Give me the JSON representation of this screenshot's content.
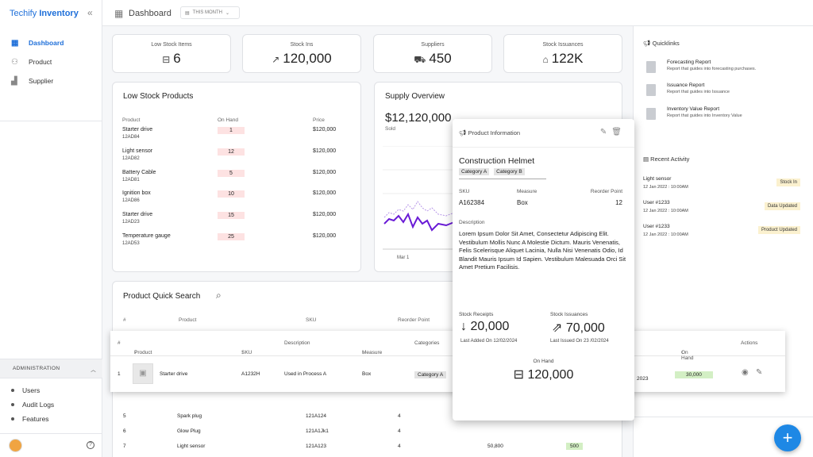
{
  "app": {
    "logo_brand": "Techify",
    "logo_product": "Inventory"
  },
  "sidebar": {
    "nav": [
      {
        "label": "Dashboard",
        "icon": "grid-icon",
        "active": true
      },
      {
        "label": "Product",
        "icon": "users-icon",
        "active": false
      },
      {
        "label": "Supplier",
        "icon": "chart-icon",
        "active": false
      }
    ],
    "admin_title": "ADMINISTRATION",
    "admin_items": [
      "Users",
      "Audit Logs",
      "Features"
    ]
  },
  "topbar": {
    "title": "Dashboard",
    "period": "THIS MONTH"
  },
  "stats": [
    {
      "label": "Low Stock Items",
      "value": "6",
      "icon": "minus-box-icon"
    },
    {
      "label": "Stock Ins",
      "value": "120,000",
      "icon": "trend-up-icon"
    },
    {
      "label": "Suppliers",
      "value": "450",
      "icon": "truck-icon"
    },
    {
      "label": "Stock Issuances",
      "value": "122K",
      "icon": "home-icon"
    }
  ],
  "low_stock": {
    "title": "Low Stock Products",
    "headers": [
      "Product",
      "On Hand",
      "Price"
    ],
    "rows": [
      {
        "name": "Starter drive",
        "sku": "12AD84",
        "on_hand": "1",
        "price": "$120,000"
      },
      {
        "name": "Light sensor",
        "sku": "12AD82",
        "on_hand": "12",
        "price": "$120,000"
      },
      {
        "name": "Battery Cable",
        "sku": "12AD81",
        "on_hand": "5",
        "price": "$120,000"
      },
      {
        "name": "Ignition box",
        "sku": "12AD86",
        "on_hand": "10",
        "price": "$120,000"
      },
      {
        "name": "Starter drive",
        "sku": "12AD23",
        "on_hand": "15",
        "price": "$120,000"
      },
      {
        "name": "Temperature gauge",
        "sku": "12AD53",
        "on_hand": "25",
        "price": "$120,000"
      }
    ]
  },
  "supply": {
    "title": "Supply Overview",
    "value": "$12,120,000",
    "sub": "Sold",
    "x_label": "Mar 1"
  },
  "quick_search": {
    "title": "Product Quick Search",
    "headers": [
      "#",
      "Product",
      "SKU",
      "Reorder Point"
    ],
    "rows": [
      {
        "n": "5",
        "name": "Spark plug",
        "sku": "121A124",
        "reorder": "4",
        "extra": "",
        "badge": ""
      },
      {
        "n": "6",
        "name": "Glow Plug",
        "sku": "121A1Jk1",
        "reorder": "4",
        "extra": "",
        "badge": ""
      },
      {
        "n": "7",
        "name": "Light sensor",
        "sku": "121A123",
        "reorder": "4",
        "extra": "50,800",
        "badge": "500"
      }
    ]
  },
  "overlay_table": {
    "headers": {
      "num": "#",
      "product": "Product",
      "sku": "SKU",
      "description": "Description",
      "measure": "Measure",
      "categories": "Categories",
      "on_hand": "On Hand",
      "actions": "Actions"
    },
    "row": {
      "num": "1",
      "product": "Starter drive",
      "sku": "A1232H",
      "description": "Used in Process A",
      "measure": "Box",
      "category": "Category A",
      "date": "2023",
      "on_hand": "30,000"
    }
  },
  "modal": {
    "header": "Product Information",
    "name": "Construction Helmet",
    "categories": [
      "Category A",
      "Category B"
    ],
    "sku_label": "SKU",
    "sku": "A162384",
    "measure_label": "Measure",
    "measure": "Box",
    "reorder_label": "Reorder Point",
    "reorder": "12",
    "desc_label": "Description",
    "description": "Lorem Ipsum Dolor Sit Amet, Consectetur Adipiscing Elit. Vestibulum Mollis Nunc A Molestie Dictum. Mauris Venenatis, Felis Scelerisque Aliquet Lacinia, Nulla Nisi Venenatis Odio, Id Blandit Mauris Ipsum Id Sapien. Vestibulum Malesuada Orci Sit Amet Pretium Facilisis.",
    "receipts_label": "Stock Receipts",
    "receipts": "20,000",
    "receipts_sub": "Last Added On 12/02/2024",
    "issuances_label": "Stock Issuances",
    "issuances": "70,000",
    "issuances_sub": "Last Issued On 23 /02/2024",
    "on_hand_label": "On Hand",
    "on_hand": "120,000"
  },
  "right_panel": {
    "quicklinks_title": "Quicklinks",
    "quicklinks": [
      {
        "title": "Forecasting Report",
        "sub": "Report that guides into forecasting  purchases."
      },
      {
        "title": "Issuance Report",
        "sub": "Report that guides into Issuance"
      },
      {
        "title": "Inventory Value Report",
        "sub": "Report that guides into Inventory Value"
      }
    ],
    "activity_title": "Recent Activity",
    "activity": [
      {
        "title": "Light sensor",
        "time": "12 Jan 2022 : 10:00AM",
        "badge": "Stock In"
      },
      {
        "title": "User #1233",
        "time": "12 Jan 2022 : 10:00AM",
        "badge": "Data Updated"
      },
      {
        "title": "User #1233",
        "time": "12 Jan 2022 : 10:00AM",
        "badge": "Product Updated"
      }
    ]
  },
  "colors": {
    "accent": "#1e6fd9",
    "low_qty": "#fde2e2",
    "on_hand_pill": "#d3efc4",
    "activity_badge": "#fbf1cf",
    "fab": "#1e88e5",
    "chart_line": "#6a1bd6"
  }
}
